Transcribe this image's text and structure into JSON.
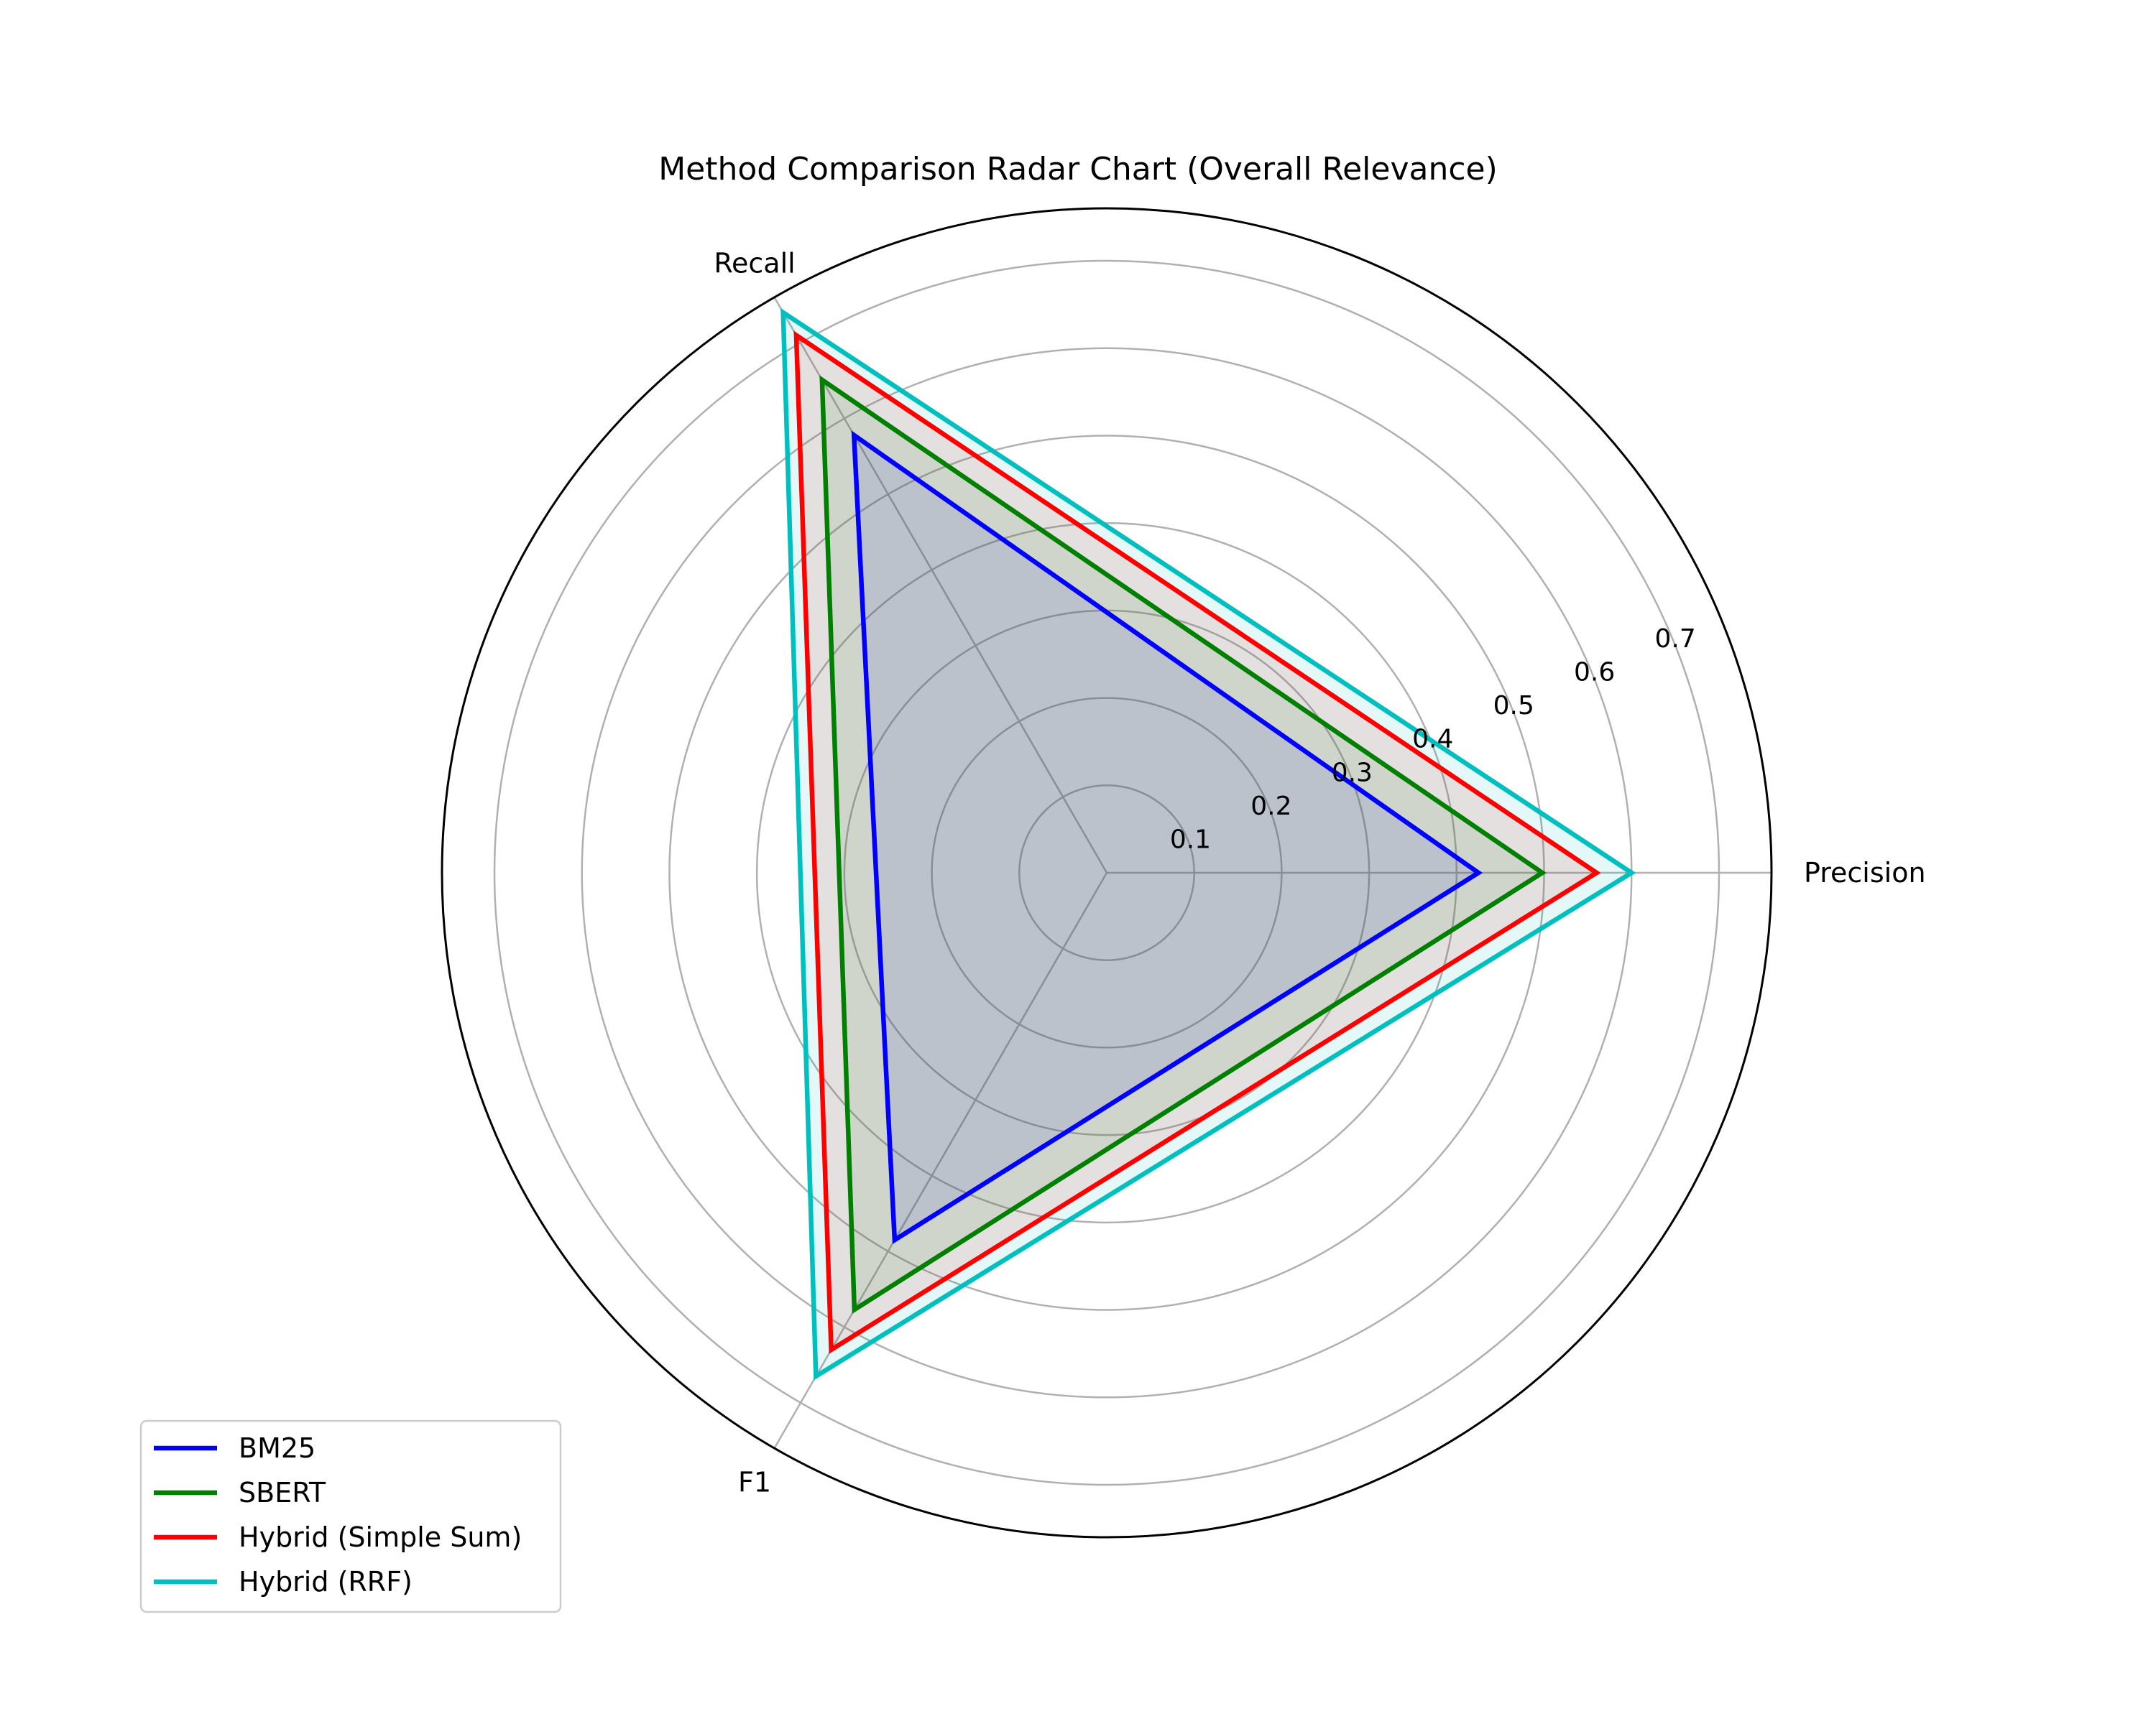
{
  "chart_data": {
    "type": "radar",
    "title": "Method Comparison Radar Chart (Overall Relevance)",
    "axes": [
      "Precision",
      "Recall",
      "F1"
    ],
    "rticks": [
      "0.1",
      "0.2",
      "0.3",
      "0.4",
      "0.5",
      "0.6",
      "0.7"
    ],
    "rlim": [
      0,
      0.76
    ],
    "grid": true,
    "legend_position": "lower-left",
    "series": [
      {
        "name": "BM25",
        "color": "#0000ff",
        "values": [
          0.425,
          0.578,
          0.485
        ]
      },
      {
        "name": "SBERT",
        "color": "#008000",
        "values": [
          0.498,
          0.651,
          0.577
        ]
      },
      {
        "name": "Hybrid (Simple Sum)",
        "color": "#ff0000",
        "values": [
          0.56,
          0.71,
          0.63
        ]
      },
      {
        "name": "Hybrid (RRF)",
        "color": "#00bfbf",
        "values": [
          0.6,
          0.74,
          0.665
        ]
      }
    ]
  }
}
